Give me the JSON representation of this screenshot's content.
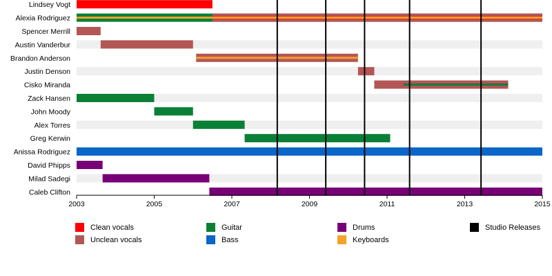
{
  "chart_data": {
    "type": "timeline",
    "x_range": [
      2003,
      2015
    ],
    "x_ticks": [
      "2003",
      "2005",
      "2007",
      "2009",
      "2011",
      "2013",
      "2015"
    ],
    "colors": {
      "clean_vocals": "#ff0000",
      "unclean_vocals": "#b35656",
      "guitar": "#0a7f36",
      "bass": "#0a66c8",
      "drums": "#770077",
      "keyboards": "#f6a12a",
      "studio_releases": "#000000",
      "stripe": "#efefef"
    },
    "members": [
      {
        "name": "Lindsey Vogt",
        "bars": [
          {
            "role": "clean_vocals",
            "start": 2003.0,
            "end": 2006.5
          }
        ]
      },
      {
        "name": "Alexia Rodriguez",
        "bars": [
          {
            "role": "guitar",
            "start": 2003.0,
            "end": 2015.0
          },
          {
            "role": "unclean_vocals",
            "start": 2006.5,
            "end": 2015.0,
            "style": "band"
          },
          {
            "role": "clean_vocals",
            "start": 2006.5,
            "end": 2015.0,
            "style": "band"
          },
          {
            "role": "keyboards",
            "start": 2003.0,
            "end": 2015.0,
            "style": "line"
          }
        ]
      },
      {
        "name": "Spencer Merrill",
        "bars": [
          {
            "role": "unclean_vocals",
            "start": 2003.0,
            "end": 2003.62
          }
        ]
      },
      {
        "name": "Austin Vanderbur",
        "bars": [
          {
            "role": "unclean_vocals",
            "start": 2003.62,
            "end": 2006.0
          }
        ]
      },
      {
        "name": "Brandon Anderson",
        "bars": [
          {
            "role": "unclean_vocals",
            "start": 2006.08,
            "end": 2010.25
          },
          {
            "role": "keyboards",
            "start": 2006.08,
            "end": 2010.25,
            "style": "line"
          }
        ]
      },
      {
        "name": "Justin Denson",
        "bars": [
          {
            "role": "unclean_vocals",
            "start": 2010.25,
            "end": 2010.67
          }
        ]
      },
      {
        "name": "Cisko Miranda",
        "bars": [
          {
            "role": "unclean_vocals",
            "start": 2010.67,
            "end": 2014.12
          },
          {
            "role": "guitar",
            "start": 2011.42,
            "end": 2014.12,
            "style": "line"
          }
        ]
      },
      {
        "name": "Zack Hansen",
        "bars": [
          {
            "role": "guitar",
            "start": 2003.0,
            "end": 2005.0
          }
        ]
      },
      {
        "name": "John Moody",
        "bars": [
          {
            "role": "guitar",
            "start": 2005.0,
            "end": 2006.0
          }
        ]
      },
      {
        "name": "Alex Torres",
        "bars": [
          {
            "role": "guitar",
            "start": 2006.0,
            "end": 2007.33
          }
        ]
      },
      {
        "name": "Greg Kerwin",
        "bars": [
          {
            "role": "guitar",
            "start": 2007.33,
            "end": 2011.08
          }
        ]
      },
      {
        "name": "Anissa Rodriguez",
        "bars": [
          {
            "role": "bass",
            "start": 2003.0,
            "end": 2015.0
          }
        ]
      },
      {
        "name": "David Phipps",
        "bars": [
          {
            "role": "drums",
            "start": 2003.0,
            "end": 2003.67
          }
        ]
      },
      {
        "name": "Milad Sadegi",
        "bars": [
          {
            "role": "drums",
            "start": 2003.67,
            "end": 2006.42
          }
        ]
      },
      {
        "name": "Caleb Clifton",
        "bars": [
          {
            "role": "drums",
            "start": 2006.42,
            "end": 2015.0
          }
        ]
      }
    ],
    "studio_releases": [
      2008.17,
      2009.42,
      2010.42,
      2011.58,
      2013.42
    ],
    "legend": [
      {
        "key": "clean_vocals",
        "label": "Clean vocals"
      },
      {
        "key": "unclean_vocals",
        "label": "Unclean vocals"
      },
      {
        "key": "guitar",
        "label": "Guitar"
      },
      {
        "key": "bass",
        "label": "Bass"
      },
      {
        "key": "drums",
        "label": "Drums"
      },
      {
        "key": "keyboards",
        "label": "Keyboards"
      },
      {
        "key": "studio_releases",
        "label": "Studio Releases"
      }
    ]
  }
}
